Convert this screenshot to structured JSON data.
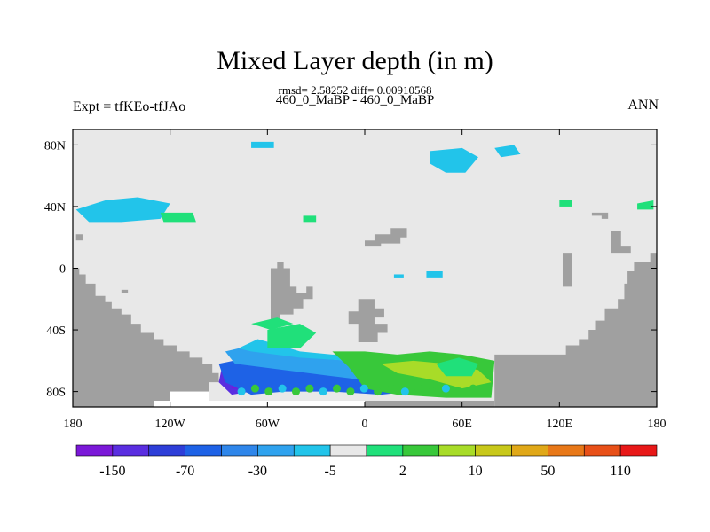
{
  "chart_data": {
    "type": "heatmap",
    "title": "Mixed Layer depth (in m)",
    "stats_line": "rmsd= 2.58252 diff= 0.00910568",
    "subtitle": "460_0_MaBP - 460_0_MaBP",
    "left_label": "Expt = tfKEo-tfJAo",
    "right_label": "ANN",
    "x_axis": {
      "range": [
        -180,
        180
      ],
      "ticks": [
        -180,
        -120,
        -60,
        0,
        60,
        120,
        180
      ],
      "tick_labels": [
        "180",
        "120W",
        "60W",
        "0",
        "60E",
        "120E",
        "180"
      ]
    },
    "y_axis": {
      "range": [
        -90,
        90
      ],
      "ticks": [
        80,
        40,
        0,
        -40,
        -80
      ],
      "tick_labels": [
        "80N",
        "40N",
        "0",
        "40S",
        "80S"
      ]
    },
    "colorbar": {
      "levels": [
        "-150",
        "",
        "-70",
        "",
        "-30",
        "",
        "-5",
        "",
        "2",
        "",
        "10",
        "",
        "50",
        "",
        "110"
      ],
      "label_ticks": [
        "-150",
        "-70",
        "-30",
        "-5",
        "2",
        "10",
        "50",
        "110"
      ],
      "colors": [
        "#7b18d8",
        "#5a2ee0",
        "#2e3ed8",
        "#1e62e6",
        "#2f86ea",
        "#2fa2ee",
        "#22c4ea",
        "#e8e8e8",
        "#20e07a",
        "#38c83a",
        "#a8dc28",
        "#c8c81a",
        "#e0a818",
        "#e87818",
        "#e85018",
        "#e81818"
      ]
    },
    "land_color": "#a0a0a0",
    "ocean_background": "#e8e8e8"
  }
}
